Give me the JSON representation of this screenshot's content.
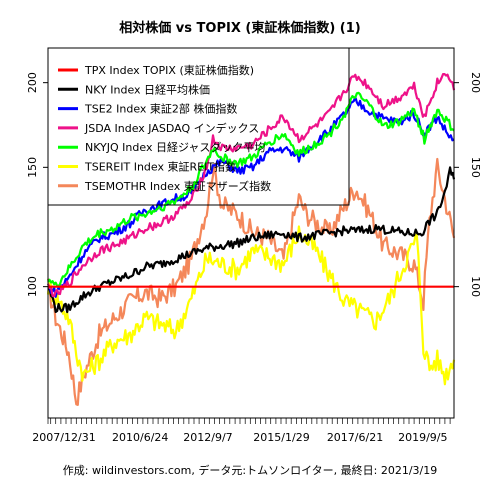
{
  "chart_data": {
    "type": "line",
    "title": "相対株価 vs TOPIX (東証株価指数) (1)",
    "caption": "作成: wildinvestors.com, データ元:トムソンロイター, 最終日: 2021/3/19",
    "x_tick_labels": [
      "2007/12/31",
      "2010/6/24",
      "2012/9/7",
      "2015/1/29",
      "2017/6/21",
      "2019/9/5"
    ],
    "y_ticks": [
      100,
      150,
      200
    ],
    "y_scale": "log",
    "ylim": [
      64,
      225
    ],
    "xlim": [
      "2007-12-31",
      "2021-03-19"
    ],
    "legend_position": "top-left",
    "colors": {
      "TPX": "#ff0000",
      "NKY": "#000000",
      "TSE2": "#0000ff",
      "JSDA": "#ee1289",
      "NKYJQ": "#00ff00",
      "TSEREIT": "#ffff00",
      "TSEMOTHR": "#f4875a"
    },
    "series": [
      {
        "name": "TPX Index TOPIX (東証株価指数)",
        "key": "TPX",
        "x": [
          "2007-12-31",
          "2021-03-19"
        ],
        "values": [
          100,
          100
        ]
      },
      {
        "name": "NKY Index 日経平均株価",
        "key": "NKY",
        "x": [
          "2007-12-31",
          "2008-04-01",
          "2008-09-01",
          "2009-03-01",
          "2009-09-01",
          "2010-03-01",
          "2010-09-01",
          "2011-03-01",
          "2011-09-01",
          "2012-03-01",
          "2012-09-01",
          "2013-03-01",
          "2013-09-01",
          "2014-03-01",
          "2014-09-01",
          "2015-03-01",
          "2015-09-01",
          "2016-03-01",
          "2016-09-01",
          "2017-03-01",
          "2017-09-01",
          "2018-03-01",
          "2018-09-01",
          "2019-03-01",
          "2019-09-01",
          "2020-03-01",
          "2020-06-01",
          "2020-09-01",
          "2020-12-01",
          "2021-02-01",
          "2021-03-19"
        ],
        "values": [
          100,
          93,
          93,
          97,
          100,
          102,
          104,
          107,
          108,
          110,
          112,
          114,
          115,
          116,
          118,
          119,
          120,
          118,
          119,
          120,
          121,
          121,
          122,
          121,
          120,
          120,
          125,
          128,
          138,
          148,
          144
        ]
      },
      {
        "name": "TSE2 Index 東証2部 株価指数",
        "key": "TSE2",
        "x": [
          "2007-12-31",
          "2008-04-01",
          "2008-09-01",
          "2009-03-01",
          "2009-09-01",
          "2010-03-01",
          "2010-09-01",
          "2011-03-01",
          "2011-09-01",
          "2012-03-01",
          "2012-09-01",
          "2013-03-01",
          "2013-09-01",
          "2014-03-01",
          "2014-09-01",
          "2015-03-01",
          "2015-09-01",
          "2016-03-01",
          "2016-09-01",
          "2017-03-01",
          "2017-09-01",
          "2018-01-01",
          "2018-06-01",
          "2018-12-01",
          "2019-06-01",
          "2019-12-01",
          "2020-04-01",
          "2020-09-01",
          "2021-01-01",
          "2021-03-19"
        ],
        "values": [
          100,
          98,
          103,
          112,
          118,
          120,
          124,
          130,
          132,
          135,
          137,
          148,
          153,
          148,
          150,
          158,
          160,
          155,
          163,
          170,
          180,
          188,
          182,
          177,
          175,
          180,
          168,
          178,
          168,
          165
        ]
      },
      {
        "name": "JSDA Index JASDAQ インデックス",
        "key": "JSDA",
        "x": [
          "2007-12-31",
          "2008-04-01",
          "2008-09-01",
          "2009-03-01",
          "2009-09-01",
          "2010-03-01",
          "2010-09-01",
          "2011-03-01",
          "2011-09-01",
          "2012-03-01",
          "2012-09-01",
          "2013-03-01",
          "2013-05-15",
          "2013-09-01",
          "2014-03-01",
          "2014-09-01",
          "2015-03-01",
          "2015-09-01",
          "2016-03-01",
          "2016-09-01",
          "2017-03-01",
          "2017-09-01",
          "2018-01-01",
          "2018-06-01",
          "2018-12-01",
          "2019-06-01",
          "2019-12-01",
          "2020-04-01",
          "2020-09-01",
          "2021-01-01",
          "2021-03-19"
        ],
        "values": [
          100,
          97,
          101,
          108,
          113,
          115,
          118,
          122,
          124,
          128,
          134,
          150,
          165,
          160,
          160,
          162,
          170,
          178,
          165,
          172,
          180,
          195,
          205,
          198,
          185,
          190,
          198,
          178,
          200,
          208,
          195
        ]
      },
      {
        "name": "NKYJQ Index 日経ジャスダック平均",
        "key": "NKYJQ",
        "x": [
          "2007-12-31",
          "2008-04-01",
          "2008-09-01",
          "2009-03-01",
          "2009-09-01",
          "2010-03-01",
          "2010-09-01",
          "2011-03-01",
          "2011-09-01",
          "2012-03-01",
          "2012-09-01",
          "2013-03-01",
          "2013-05-15",
          "2013-09-01",
          "2014-03-01",
          "2014-09-01",
          "2015-03-01",
          "2015-09-01",
          "2016-03-01",
          "2016-09-01",
          "2017-03-01",
          "2017-09-01",
          "2018-01-01",
          "2018-06-01",
          "2018-12-01",
          "2019-06-01",
          "2019-12-01",
          "2020-04-01",
          "2020-09-01",
          "2021-01-01",
          "2021-03-19"
        ],
        "values": [
          103,
          100,
          106,
          115,
          120,
          122,
          126,
          128,
          131,
          134,
          140,
          153,
          160,
          155,
          152,
          155,
          163,
          168,
          157,
          162,
          168,
          180,
          192,
          186,
          172,
          175,
          182,
          165,
          182,
          175,
          170
        ]
      },
      {
        "name": "TSEREIT Index 東証REIT指数",
        "key": "TSEREIT",
        "x": [
          "2007-12-31",
          "2008-04-01",
          "2008-09-01",
          "2008-12-01",
          "2009-03-01",
          "2009-09-01",
          "2010-03-01",
          "2010-09-01",
          "2011-03-01",
          "2011-09-01",
          "2012-03-01",
          "2012-09-01",
          "2013-03-01",
          "2013-09-01",
          "2014-03-01",
          "2014-09-01",
          "2015-03-01",
          "2015-09-01",
          "2016-03-01",
          "2016-09-01",
          "2017-03-01",
          "2017-09-01",
          "2018-03-01",
          "2018-09-01",
          "2019-03-01",
          "2019-09-01",
          "2020-01-01",
          "2020-03-20",
          "2020-06-01",
          "2020-09-01",
          "2020-12-01",
          "2021-03-19"
        ],
        "values": [
          100,
          97,
          90,
          80,
          74,
          78,
          83,
          85,
          90,
          88,
          86,
          96,
          110,
          108,
          106,
          113,
          111,
          108,
          120,
          114,
          104,
          95,
          92,
          89,
          97,
          110,
          118,
          82,
          76,
          78,
          74,
          78
        ]
      },
      {
        "name": "TSEMOTHR Index 東証マザーズ指数",
        "key": "TSEMOTHR",
        "x": [
          "2007-12-31",
          "2008-04-01",
          "2008-09-01",
          "2008-12-01",
          "2009-03-01",
          "2009-09-01",
          "2010-03-01",
          "2010-09-01",
          "2011-03-01",
          "2011-09-01",
          "2012-03-01",
          "2012-09-01",
          "2013-03-01",
          "2013-05-15",
          "2013-09-01",
          "2014-03-01",
          "2014-09-01",
          "2015-03-01",
          "2015-09-01",
          "2016-03-01",
          "2016-06-01",
          "2016-09-01",
          "2017-03-01",
          "2017-09-01",
          "2018-01-01",
          "2018-06-01",
          "2018-12-01",
          "2019-06-01",
          "2019-12-01",
          "2020-03-20",
          "2020-06-01",
          "2020-09-01",
          "2020-12-01",
          "2021-03-19"
        ],
        "values": [
          100,
          90,
          80,
          68,
          74,
          85,
          90,
          95,
          98,
          96,
          100,
          110,
          130,
          150,
          132,
          128,
          120,
          118,
          110,
          135,
          128,
          125,
          120,
          132,
          140,
          130,
          115,
          112,
          108,
          95,
          125,
          150,
          135,
          118
        ]
      }
    ]
  }
}
